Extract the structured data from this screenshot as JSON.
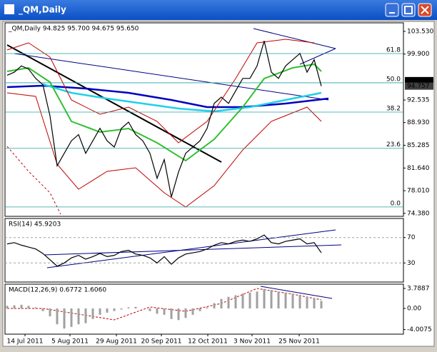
{
  "window": {
    "title": "_QM,Daily"
  },
  "chart_data": [
    {
      "type": "line",
      "title": "_QM,Daily  94.825 95.700 94.675 95.650",
      "color": "#000000",
      "values": [
        96.5,
        97,
        98,
        97.5,
        96,
        95,
        90,
        82,
        84,
        86,
        87,
        84,
        86,
        88,
        86,
        85,
        88,
        89,
        87,
        86,
        84,
        80,
        83,
        77,
        81,
        84,
        85,
        86,
        88,
        92,
        93,
        92,
        94,
        96,
        96,
        98,
        102,
        97,
        96,
        98,
        99,
        100,
        97,
        99,
        94.757
      ],
      "ylim": [
        73.9,
        104.9
      ],
      "yticks": [
        {
          "value": 103.53,
          "label": "103.530"
        },
        {
          "value": 99.9,
          "label": "99.900"
        },
        {
          "value": 92.535,
          "label": "92.535"
        },
        {
          "value": 88.93,
          "label": "88.930"
        },
        {
          "value": 85.285,
          "label": "85.285"
        },
        {
          "value": 81.64,
          "label": "81.640"
        },
        {
          "value": 78.01,
          "label": "78.010"
        },
        {
          "value": 74.38,
          "label": "74.380"
        }
      ],
      "fib_levels": [
        {
          "value": 99.98,
          "label": "61.8"
        },
        {
          "value": 95.3,
          "label": "50.0"
        },
        {
          "value": 90.6,
          "label": "38.2"
        },
        {
          "value": 84.8,
          "label": "23.6"
        },
        {
          "value": 75.4,
          "label": "0.0"
        }
      ],
      "last_prices": [
        {
          "value": 95.65,
          "label": "95.650"
        },
        {
          "value": 94.757,
          "label": "94.757"
        }
      ]
    },
    {
      "type": "line",
      "title": "RSI(14) 45.9203",
      "color": "#000000",
      "values": [
        60,
        62,
        58,
        55,
        52,
        45,
        35,
        25,
        30,
        38,
        42,
        36,
        40,
        45,
        40,
        42,
        48,
        50,
        44,
        42,
        38,
        30,
        40,
        28,
        38,
        44,
        46,
        48,
        52,
        58,
        62,
        60,
        64,
        66,
        64,
        68,
        74,
        62,
        60,
        64,
        66,
        68,
        60,
        62,
        46
      ],
      "ylim": [
        0,
        100
      ],
      "yticks": [
        70,
        30
      ]
    },
    {
      "type": "bar",
      "title": "MACD(12,26,9) 0.6772 1.6060",
      "color": "#a0a0a0",
      "values": [
        0.5,
        0.6,
        0.7,
        0.5,
        0.2,
        -0.5,
        -1.5,
        -3,
        -3.8,
        -3.5,
        -3,
        -2.8,
        -2,
        -1.2,
        -0.8,
        -0.5,
        -0.2,
        0.2,
        0.3,
        0,
        -0.5,
        -1,
        -1.2,
        -2,
        -2.2,
        -1.8,
        -1.2,
        -0.5,
        0.2,
        1,
        1.8,
        2.2,
        2.5,
        2.8,
        3,
        3.2,
        3.7,
        3.5,
        3.2,
        3,
        2.8,
        2.6,
        2.2,
        1.9,
        1.4
      ],
      "ylim": [
        -4.87,
        4.6
      ],
      "yticks": [
        3.7887,
        {
          "value": 0,
          "label": "0.00"
        },
        -4.0075
      ],
      "xticks": [
        {
          "value": 2.5,
          "label": "14 Jul 2011"
        },
        {
          "value": 8.8,
          "label": "5 Aug 2011"
        },
        {
          "value": 15.3,
          "label": "29 Aug 2011"
        },
        {
          "value": 21.6,
          "label": "20 Sep 2011"
        },
        {
          "value": 28.1,
          "label": "12 Oct 2011"
        },
        {
          "value": 34.3,
          "label": "3 Nov 2011"
        },
        {
          "value": 40.9,
          "label": "25 Nov 2011"
        }
      ]
    }
  ]
}
